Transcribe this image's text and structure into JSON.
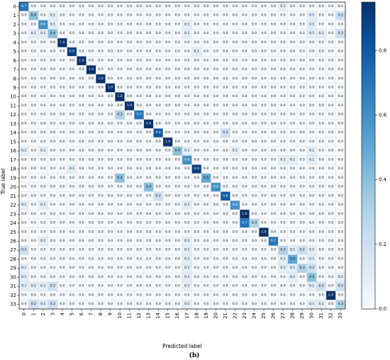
{
  "chart_data": {
    "type": "heatmap",
    "title": "",
    "caption": "(b)",
    "xlabel": "Predicted label",
    "ylabel": "True label",
    "x_categories": [
      "0",
      "1",
      "2",
      "3",
      "4",
      "5",
      "6",
      "7",
      "8",
      "9",
      "10",
      "11",
      "12",
      "13",
      "14",
      "15",
      "16",
      "17",
      "18",
      "19",
      "20",
      "21",
      "22",
      "23",
      "24",
      "25",
      "26",
      "27",
      "28",
      "29",
      "30",
      "31",
      "32",
      "33"
    ],
    "y_categories": [
      "0",
      "1",
      "2",
      "3",
      "4",
      "5",
      "6",
      "7",
      "8",
      "9",
      "10",
      "11",
      "12",
      "13",
      "14",
      "15",
      "16",
      "17",
      "18",
      "19",
      "20",
      "21",
      "22",
      "23",
      "24",
      "25",
      "26",
      "27",
      "28",
      "29",
      "30",
      "31",
      "32",
      "33"
    ],
    "colormap": "Blues",
    "color_low": "#f7fbff",
    "color_high": "#08306b",
    "vmin": 0,
    "vmax": 0.95,
    "colorbar_ticks": [
      0.0,
      0.2,
      0.4,
      0.6,
      0.8
    ],
    "colorbar_tick_labels": [
      "0.0",
      "0.2",
      "0.4",
      "0.6",
      "0.8"
    ],
    "grid": true,
    "cells": [
      {
        "row": 0,
        "col": 0,
        "value": 0.7
      },
      {
        "row": 0,
        "col": 27,
        "value": 0.1
      },
      {
        "row": 1,
        "col": 1,
        "value": 0.4
      },
      {
        "row": 1,
        "col": 3,
        "value": 0.1
      },
      {
        "row": 1,
        "col": 30,
        "value": 0.1
      },
      {
        "row": 1,
        "col": 33,
        "value": 0.2
      },
      {
        "row": 2,
        "col": 2,
        "value": 0.6
      },
      {
        "row": 2,
        "col": 3,
        "value": 0.1
      },
      {
        "row": 2,
        "col": 17,
        "value": 0.1
      },
      {
        "row": 2,
        "col": 30,
        "value": 0.1
      },
      {
        "row": 3,
        "col": 1,
        "value": 0.1
      },
      {
        "row": 3,
        "col": 2,
        "value": 0.1
      },
      {
        "row": 3,
        "col": 3,
        "value": 0.4
      },
      {
        "row": 3,
        "col": 17,
        "value": 0.1
      },
      {
        "row": 3,
        "col": 30,
        "value": 0.1
      },
      {
        "row": 3,
        "col": 31,
        "value": 0.1
      },
      {
        "row": 3,
        "col": 33,
        "value": 0.2
      },
      {
        "row": 4,
        "col": 4,
        "value": 1.0
      },
      {
        "row": 5,
        "col": 5,
        "value": 0.9
      },
      {
        "row": 5,
        "col": 18,
        "value": 0.1
      },
      {
        "row": 6,
        "col": 6,
        "value": 1.0
      },
      {
        "row": 7,
        "col": 7,
        "value": 1.0
      },
      {
        "row": 8,
        "col": 8,
        "value": 1.0
      },
      {
        "row": 9,
        "col": 9,
        "value": 1.0
      },
      {
        "row": 10,
        "col": 10,
        "value": 1.0
      },
      {
        "row": 11,
        "col": 11,
        "value": 1.0
      },
      {
        "row": 12,
        "col": 10,
        "value": 0.3
      },
      {
        "row": 12,
        "col": 12,
        "value": 0.7
      },
      {
        "row": 13,
        "col": 13,
        "value": 1.0
      },
      {
        "row": 14,
        "col": 14,
        "value": 0.8
      },
      {
        "row": 14,
        "col": 21,
        "value": 0.2
      },
      {
        "row": 15,
        "col": 15,
        "value": 1.0
      },
      {
        "row": 16,
        "col": 0,
        "value": 0.1
      },
      {
        "row": 16,
        "col": 2,
        "value": 0.1
      },
      {
        "row": 16,
        "col": 16,
        "value": 0.4
      },
      {
        "row": 16,
        "col": 17,
        "value": 0.1
      },
      {
        "row": 16,
        "col": 22,
        "value": 0.1
      },
      {
        "row": 16,
        "col": 30,
        "value": 0.1
      },
      {
        "row": 17,
        "col": 17,
        "value": 0.6
      },
      {
        "row": 17,
        "col": 27,
        "value": 0.1
      },
      {
        "row": 17,
        "col": 28,
        "value": 0.1
      },
      {
        "row": 17,
        "col": 30,
        "value": 0.1
      },
      {
        "row": 18,
        "col": 18,
        "value": 0.9
      },
      {
        "row": 18,
        "col": 5,
        "value": 0.1
      },
      {
        "row": 19,
        "col": 10,
        "value": 0.4
      },
      {
        "row": 19,
        "col": 19,
        "value": 0.5
      },
      {
        "row": 20,
        "col": 13,
        "value": 0.4
      },
      {
        "row": 20,
        "col": 20,
        "value": 0.6
      },
      {
        "row": 21,
        "col": 14,
        "value": 0.2
      },
      {
        "row": 21,
        "col": 21,
        "value": 0.8
      },
      {
        "row": 22,
        "col": 0,
        "value": 0.1
      },
      {
        "row": 22,
        "col": 2,
        "value": 0.1
      },
      {
        "row": 22,
        "col": 17,
        "value": 0.1
      },
      {
        "row": 22,
        "col": 22,
        "value": 0.6
      },
      {
        "row": 23,
        "col": 23,
        "value": 1.0
      },
      {
        "row": 24,
        "col": 23,
        "value": 0.7
      },
      {
        "row": 24,
        "col": 24,
        "value": 0.3
      },
      {
        "row": 25,
        "col": 25,
        "value": 1.0
      },
      {
        "row": 26,
        "col": 2,
        "value": 0.1
      },
      {
        "row": 26,
        "col": 17,
        "value": 0.1
      },
      {
        "row": 26,
        "col": 26,
        "value": 0.7
      },
      {
        "row": 27,
        "col": 0,
        "value": 0.2
      },
      {
        "row": 27,
        "col": 17,
        "value": 0.1
      },
      {
        "row": 27,
        "col": 27,
        "value": 0.3
      },
      {
        "row": 27,
        "col": 28,
        "value": 0.1
      },
      {
        "row": 27,
        "col": 29,
        "value": 0.2
      },
      {
        "row": 27,
        "col": 30,
        "value": 0.1
      },
      {
        "row": 28,
        "col": 17,
        "value": 0.1
      },
      {
        "row": 28,
        "col": 27,
        "value": 0.1
      },
      {
        "row": 28,
        "col": 28,
        "value": 0.5
      },
      {
        "row": 28,
        "col": 30,
        "value": 0.1
      },
      {
        "row": 29,
        "col": 0,
        "value": 0.1
      },
      {
        "row": 29,
        "col": 17,
        "value": 0.1
      },
      {
        "row": 29,
        "col": 27,
        "value": 0.1
      },
      {
        "row": 29,
        "col": 28,
        "value": 0.1
      },
      {
        "row": 29,
        "col": 29,
        "value": 0.3
      },
      {
        "row": 29,
        "col": 30,
        "value": 0.2
      },
      {
        "row": 30,
        "col": 0,
        "value": 0.1
      },
      {
        "row": 30,
        "col": 17,
        "value": 0.1
      },
      {
        "row": 30,
        "col": 28,
        "value": 0.1
      },
      {
        "row": 30,
        "col": 30,
        "value": 0.4
      },
      {
        "row": 30,
        "col": 33,
        "value": 0.1
      },
      {
        "row": 31,
        "col": 0,
        "value": 0.1
      },
      {
        "row": 31,
        "col": 1,
        "value": 0.1
      },
      {
        "row": 31,
        "col": 2,
        "value": 0.1
      },
      {
        "row": 31,
        "col": 3,
        "value": 0.2
      },
      {
        "row": 31,
        "col": 17,
        "value": 0.1
      },
      {
        "row": 31,
        "col": 30,
        "value": 0.1
      },
      {
        "row": 31,
        "col": 31,
        "value": 0.2
      },
      {
        "row": 31,
        "col": 33,
        "value": 0.2
      },
      {
        "row": 32,
        "col": 32,
        "value": 1.0
      },
      {
        "row": 33,
        "col": 1,
        "value": 0.2
      },
      {
        "row": 33,
        "col": 2,
        "value": 0.1
      },
      {
        "row": 33,
        "col": 3,
        "value": 0.2
      },
      {
        "row": 33,
        "col": 17,
        "value": 0.1
      },
      {
        "row": 33,
        "col": 30,
        "value": 0.1
      },
      {
        "row": 33,
        "col": 31,
        "value": 0.1
      },
      {
        "row": 33,
        "col": 33,
        "value": 0.3
      }
    ]
  }
}
